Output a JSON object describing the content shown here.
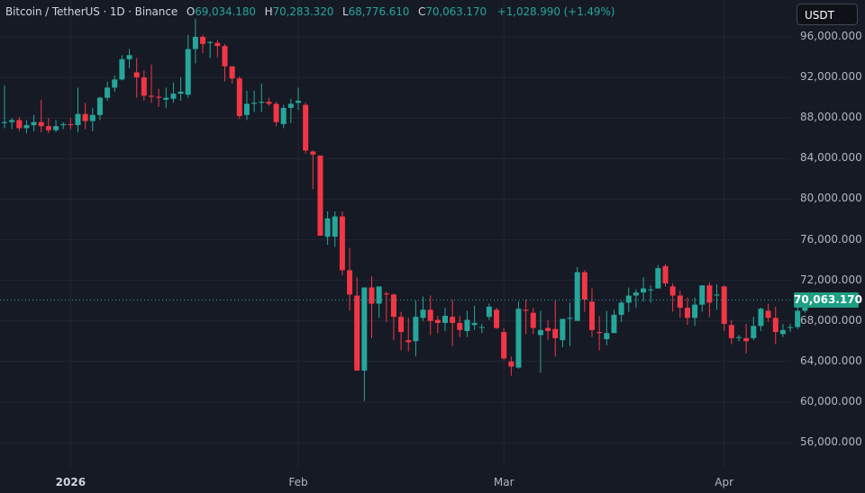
{
  "legend": {
    "symbol": "Bitcoin / TetherUS · 1D · Binance",
    "open_label": "O",
    "open": "69,034.180",
    "high_label": "H",
    "high": "70,283.320",
    "low_label": "L",
    "low": "68,776.610",
    "close_label": "C",
    "close": "70,063.170",
    "change": "+1,028.990 (+1.49%)"
  },
  "currency_button": "USDT",
  "last_price_label": "70,063.170",
  "colors": {
    "background": "#161a25",
    "grid": "#232632",
    "up": "#26a69a",
    "down": "#f23645",
    "price_line": "#26a69a",
    "price_tag": "#1e9e82"
  },
  "chart_data": {
    "type": "candlestick",
    "title": "Bitcoin / TetherUS · 1D · Binance",
    "xlabel": "",
    "ylabel": "USDT",
    "y_ticks": [
      "96,000.000",
      "92,000.000",
      "88,000.000",
      "84,000.000",
      "80,000.000",
      "76,000.000",
      "72,000.000",
      "68,000.000",
      "64,000.000",
      "60,000.000",
      "56,000.000"
    ],
    "y_tick_values": [
      96000,
      92000,
      88000,
      84000,
      80000,
      76000,
      72000,
      68000,
      64000,
      60000,
      56000
    ],
    "x_ticks": [
      {
        "label": "2026",
        "index": 9,
        "bold": true
      },
      {
        "label": "Feb",
        "index": 40,
        "bold": false
      },
      {
        "label": "Mar",
        "index": 68,
        "bold": false
      },
      {
        "label": "Apr",
        "index": 98,
        "bold": false
      }
    ],
    "ylim": [
      53500,
      98500
    ],
    "grid": true,
    "last_price": 70063.17,
    "candles": [
      [
        87500,
        91200,
        87000,
        87600
      ],
      [
        87600,
        88000,
        86900,
        87800
      ],
      [
        87800,
        88100,
        86700,
        87000
      ],
      [
        87000,
        87800,
        86500,
        87300
      ],
      [
        87300,
        88300,
        86700,
        87600
      ],
      [
        87600,
        89800,
        86600,
        87200
      ],
      [
        87200,
        88000,
        86500,
        86800
      ],
      [
        86800,
        87800,
        86600,
        87200
      ],
      [
        87300,
        87600,
        86900,
        87400
      ],
      [
        87400,
        88000,
        86900,
        87300
      ],
      [
        87300,
        91000,
        86600,
        88400
      ],
      [
        88400,
        89500,
        86900,
        87700
      ],
      [
        87700,
        89000,
        86700,
        88300
      ],
      [
        88300,
        90100,
        87800,
        90000
      ],
      [
        90000,
        91600,
        89700,
        91000
      ],
      [
        91000,
        92200,
        90600,
        91800
      ],
      [
        91800,
        94200,
        91700,
        93800
      ],
      [
        93800,
        94800,
        92900,
        94200
      ],
      [
        92500,
        93900,
        90000,
        92000
      ],
      [
        92000,
        92700,
        89700,
        90200
      ],
      [
        90200,
        93300,
        89500,
        90100
      ],
      [
        90100,
        90900,
        89100,
        90000
      ],
      [
        89800,
        91000,
        89000,
        90000
      ],
      [
        89900,
        91500,
        89500,
        90400
      ],
      [
        90400,
        92000,
        89700,
        90600
      ],
      [
        90300,
        96200,
        90000,
        94800
      ],
      [
        94800,
        97800,
        93400,
        96000
      ],
      [
        96000,
        96200,
        94400,
        95300
      ],
      [
        95400,
        95600,
        93900,
        95500
      ],
      [
        95400,
        95700,
        94000,
        95100
      ],
      [
        95100,
        95300,
        91600,
        93100
      ],
      [
        93100,
        93100,
        91400,
        91900
      ],
      [
        91900,
        92100,
        87900,
        88200
      ],
      [
        88300,
        90700,
        87800,
        89400
      ],
      [
        89400,
        90700,
        88600,
        89500
      ],
      [
        89500,
        91400,
        88600,
        89600
      ],
      [
        89600,
        90000,
        89200,
        89400
      ],
      [
        89400,
        89600,
        87200,
        87600
      ],
      [
        87400,
        89300,
        87000,
        89000
      ],
      [
        89000,
        89900,
        87500,
        89400
      ],
      [
        89500,
        91000,
        88800,
        89700
      ],
      [
        89300,
        89500,
        84500,
        84800
      ],
      [
        84700,
        84800,
        81000,
        84400
      ],
      [
        84300,
        84300,
        76400,
        76400
      ],
      [
        76300,
        78800,
        75500,
        78100
      ],
      [
        76300,
        78800,
        75300,
        78300
      ],
      [
        78300,
        78800,
        72500,
        73000
      ],
      [
        73000,
        75200,
        69000,
        70600
      ],
      [
        70500,
        72300,
        67500,
        63100
      ],
      [
        63100,
        71300,
        60100,
        71300
      ],
      [
        71300,
        72400,
        66300,
        69700
      ],
      [
        69700,
        71200,
        68300,
        71400
      ],
      [
        70700,
        70900,
        67900,
        70600
      ],
      [
        70600,
        70700,
        66100,
        68400
      ],
      [
        68400,
        68900,
        65100,
        66900
      ],
      [
        66100,
        68300,
        65000,
        65900
      ],
      [
        66000,
        70000,
        64500,
        68400
      ],
      [
        68300,
        70400,
        68000,
        69100
      ],
      [
        69100,
        70500,
        66600,
        68000
      ],
      [
        68100,
        68500,
        66800,
        67800
      ],
      [
        67800,
        69300,
        67000,
        68500
      ],
      [
        68400,
        70100,
        65500,
        67800
      ],
      [
        67800,
        68500,
        66400,
        67100
      ],
      [
        67000,
        69000,
        66400,
        68100
      ],
      [
        67600,
        69500,
        67100,
        67800
      ],
      [
        67400,
        67700,
        66800,
        67400
      ],
      [
        68400,
        69700,
        68100,
        69400
      ],
      [
        69100,
        69300,
        67200,
        67300
      ],
      [
        66900,
        67300,
        64100,
        64300
      ],
      [
        64000,
        64500,
        62600,
        63500
      ],
      [
        63400,
        69900,
        63300,
        69200
      ],
      [
        69100,
        70100,
        66700,
        69000
      ],
      [
        68800,
        69300,
        66700,
        67300
      ],
      [
        66600,
        69000,
        62900,
        67100
      ],
      [
        67300,
        68100,
        66100,
        67000
      ],
      [
        67200,
        70000,
        64500,
        66300
      ],
      [
        66100,
        68000,
        65400,
        68200
      ],
      [
        68200,
        69800,
        65500,
        68300
      ],
      [
        68000,
        73300,
        68700,
        72800
      ],
      [
        72800,
        73000,
        68900,
        70100
      ],
      [
        69900,
        71200,
        66400,
        67100
      ],
      [
        66900,
        68500,
        65100,
        66800
      ],
      [
        66200,
        69000,
        65600,
        66800
      ],
      [
        66800,
        69100,
        66900,
        68600
      ],
      [
        68600,
        70000,
        67900,
        69800
      ],
      [
        69800,
        71300,
        68900,
        70500
      ],
      [
        70500,
        71100,
        69300,
        70800
      ],
      [
        70800,
        72300,
        69900,
        71200
      ],
      [
        71100,
        71500,
        69800,
        71100
      ],
      [
        71200,
        73500,
        72800,
        73200
      ],
      [
        73400,
        73600,
        71400,
        71700
      ],
      [
        71400,
        71700,
        68900,
        70500
      ],
      [
        70500,
        71000,
        68300,
        69300
      ],
      [
        69300,
        70300,
        67600,
        68300
      ],
      [
        68300,
        70300,
        67500,
        69600
      ],
      [
        69600,
        71500,
        68900,
        71500
      ],
      [
        71500,
        71800,
        68400,
        69800
      ],
      [
        70500,
        71600,
        69100,
        70600
      ],
      [
        71400,
        71500,
        67000,
        67700
      ],
      [
        67600,
        68100,
        65700,
        66300
      ],
      [
        66400,
        66600,
        66000,
        66400
      ],
      [
        66300,
        67700,
        64800,
        66000
      ],
      [
        66300,
        68400,
        66100,
        67500
      ],
      [
        67500,
        69300,
        67000,
        69200
      ],
      [
        69000,
        69700,
        67900,
        68300
      ],
      [
        68300,
        69400,
        65700,
        66900
      ],
      [
        66700,
        67700,
        66400,
        67100
      ],
      [
        67400,
        67700,
        66900,
        67400
      ],
      [
        67400,
        70100,
        67200,
        69000
      ],
      [
        69000,
        70300,
        68800,
        70100
      ]
    ]
  }
}
